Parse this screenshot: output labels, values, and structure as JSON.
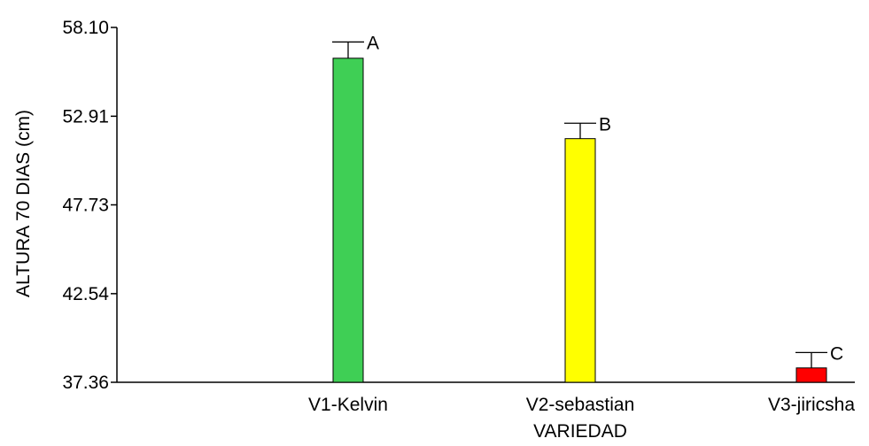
{
  "chart_data": {
    "type": "bar",
    "xlabel": "VARIEDAD",
    "ylabel": "ALTURA 70 DIAS (cm)",
    "ylim": [
      37.36,
      58.1
    ],
    "yticks": [
      "37.36",
      "42.54",
      "47.73",
      "52.91",
      "58.10"
    ],
    "grid": false,
    "categories": [
      "V1-Kelvin",
      "V2-sebastian",
      "V3-jiricsha"
    ],
    "values": [
      56.3,
      51.6,
      38.2
    ],
    "error_upper": [
      57.25,
      52.5,
      39.1
    ],
    "group_labels": [
      "A",
      "B",
      "C"
    ],
    "bar_colors": [
      "#3fcf55",
      "#ffff00",
      "#ff0000"
    ]
  }
}
